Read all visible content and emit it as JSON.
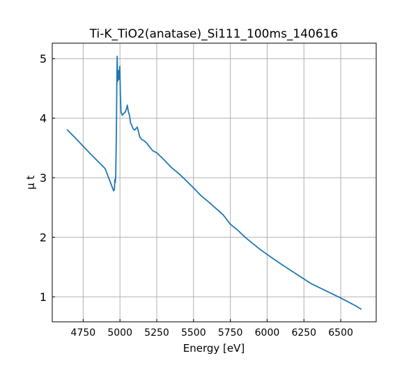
{
  "chart_data": {
    "type": "line",
    "title": "Ti-K_TiO2(anatase)_Si111_100ms_140616",
    "xlabel": "Energy [eV]",
    "ylabel": "μ t",
    "xlim": [
      4540,
      6741
    ],
    "ylim": [
      0.58,
      5.26
    ],
    "xticks": [
      4750,
      5000,
      5250,
      5500,
      5750,
      6000,
      6250,
      6500
    ],
    "yticks": [
      1,
      2,
      3,
      4,
      5
    ],
    "grid": true,
    "line_color": "#1f77b4",
    "series": [
      {
        "name": "mu_t",
        "x": [
          4640,
          4700,
          4800,
          4900,
          4957,
          4962,
          4965,
          4968,
          4971,
          4976,
          4979,
          4981,
          4985,
          4990,
          4995,
          4999,
          5003,
          5007,
          5015,
          5025,
          5035,
          5045,
          5050,
          5058,
          5065,
          5072,
          5080,
          5090,
          5100,
          5110,
          5118,
          5125,
          5135,
          5150,
          5165,
          5183,
          5200,
          5225,
          5250,
          5275,
          5300,
          5350,
          5400,
          5450,
          5500,
          5550,
          5600,
          5650,
          5700,
          5750,
          5800,
          5850,
          5900,
          5950,
          6000,
          6100,
          6200,
          6250,
          6300,
          6400,
          6500,
          6600,
          6640
        ],
        "y": [
          3.81,
          3.66,
          3.4,
          3.15,
          2.78,
          2.8,
          2.97,
          2.92,
          3.02,
          3.8,
          4.6,
          5.04,
          4.62,
          4.8,
          4.65,
          4.87,
          4.4,
          4.1,
          4.05,
          4.08,
          4.1,
          4.16,
          4.22,
          4.1,
          4.05,
          3.92,
          3.88,
          3.82,
          3.8,
          3.83,
          3.85,
          3.78,
          3.68,
          3.64,
          3.62,
          3.58,
          3.52,
          3.45,
          3.42,
          3.36,
          3.3,
          3.17,
          3.07,
          2.95,
          2.83,
          2.7,
          2.6,
          2.49,
          2.38,
          2.22,
          2.12,
          2.0,
          1.9,
          1.8,
          1.71,
          1.54,
          1.38,
          1.3,
          1.22,
          1.1,
          0.98,
          0.85,
          0.79
        ]
      }
    ]
  }
}
